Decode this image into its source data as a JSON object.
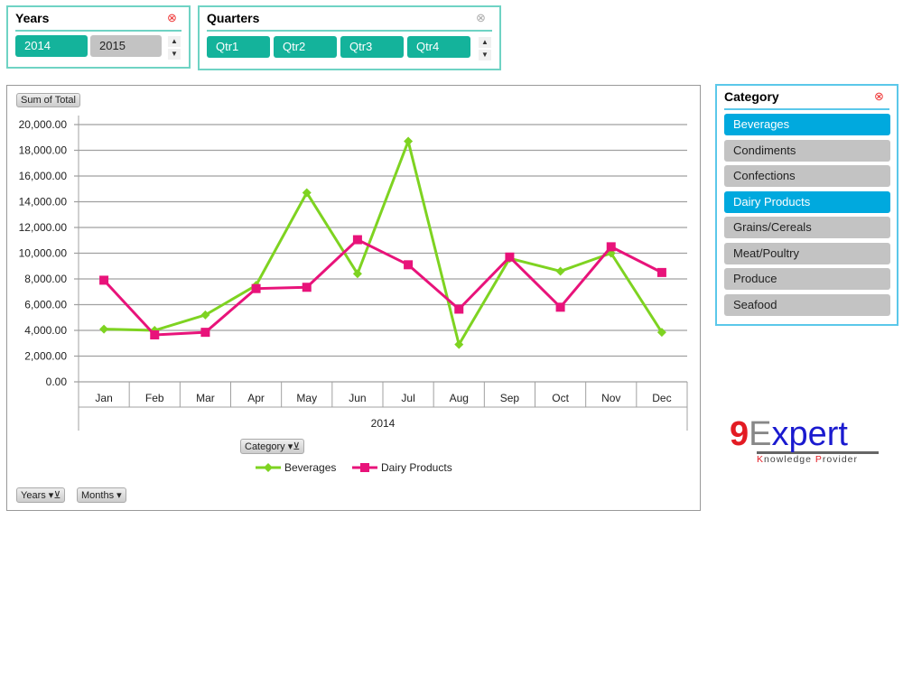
{
  "years_slicer": {
    "title": "Years",
    "items": [
      {
        "label": "2014",
        "selected": true
      },
      {
        "label": "2015",
        "selected": false
      }
    ]
  },
  "quarters_slicer": {
    "title": "Quarters",
    "items": [
      {
        "label": "Qtr1"
      },
      {
        "label": "Qtr2"
      },
      {
        "label": "Qtr3"
      },
      {
        "label": "Qtr4"
      }
    ]
  },
  "category_slicer": {
    "title": "Category",
    "items": [
      {
        "label": "Beverages",
        "selected": true
      },
      {
        "label": "Condiments",
        "selected": false
      },
      {
        "label": "Confections",
        "selected": false
      },
      {
        "label": "Dairy Products",
        "selected": true
      },
      {
        "label": "Grains/Cereals",
        "selected": false
      },
      {
        "label": "Meat/Poultry",
        "selected": false
      },
      {
        "label": "Produce",
        "selected": false
      },
      {
        "label": "Seafood",
        "selected": false
      }
    ]
  },
  "chart_buttons": {
    "value_field": "Sum of Total",
    "legend_field": "Category",
    "axis_field1": "Years",
    "axis_field2": "Months"
  },
  "logo": {
    "text": "9Expert",
    "tagline": "Knowledge Provider"
  },
  "chart_data": {
    "type": "line",
    "categories": [
      "Jan",
      "Feb",
      "Mar",
      "Apr",
      "May",
      "Jun",
      "Jul",
      "Aug",
      "Sep",
      "Oct",
      "Nov",
      "Dec"
    ],
    "group_label": "2014",
    "ylim": [
      0,
      20000
    ],
    "yticks": [
      "0.00",
      "2,000.00",
      "4,000.00",
      "6,000.00",
      "8,000.00",
      "10,000.00",
      "12,000.00",
      "14,000.00",
      "16,000.00",
      "18,000.00",
      "20,000.00"
    ],
    "legend_position": "bottom",
    "series": [
      {
        "name": "Beverages",
        "color": "#7ed321",
        "marker": "diamond",
        "values": [
          4100,
          4000,
          5200,
          7500,
          14700,
          8400,
          18700,
          2900,
          9600,
          8600,
          10000,
          3850
        ]
      },
      {
        "name": "Dairy Products",
        "color": "#e8137a",
        "marker": "square",
        "values": [
          7900,
          3650,
          3850,
          7250,
          7350,
          11050,
          9100,
          5650,
          9700,
          5800,
          10500,
          8500
        ]
      }
    ]
  }
}
